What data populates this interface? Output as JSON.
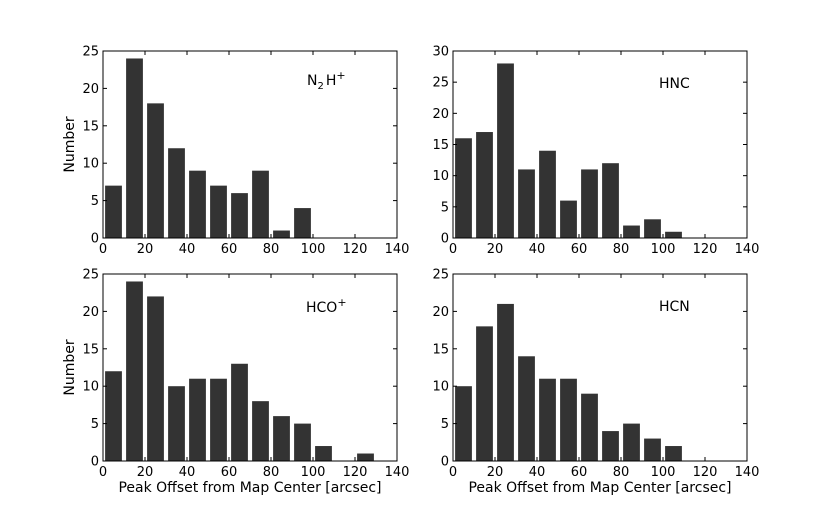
{
  "figure": {
    "xlabel": "Peak Offset from Map Center [arcsec]",
    "ylabel": "Number",
    "bar_color": "#333333"
  },
  "chart_data": [
    {
      "type": "bar",
      "title": "N2H+",
      "label_main": "N",
      "label_sub": "2",
      "label_tail": "H",
      "label_sup": "+",
      "xlabel": "",
      "ylabel": "Number",
      "bin_width": 10,
      "x": [
        5,
        15,
        25,
        35,
        45,
        55,
        65,
        75,
        85,
        95
      ],
      "values": [
        7,
        24,
        18,
        12,
        9,
        7,
        6,
        9,
        1,
        4
      ],
      "xlim": [
        0,
        140
      ],
      "ylim": [
        0,
        25
      ],
      "xticks": [
        0,
        20,
        40,
        60,
        80,
        100,
        120,
        140
      ],
      "yticks": [
        0,
        5,
        10,
        15,
        20,
        25
      ]
    },
    {
      "type": "bar",
      "title": "HNC",
      "label_main": "HNC",
      "label_sub": "",
      "label_tail": "",
      "label_sup": "",
      "xlabel": "",
      "ylabel": "",
      "bin_width": 10,
      "x": [
        5,
        15,
        25,
        35,
        45,
        55,
        65,
        75,
        85,
        95,
        105
      ],
      "values": [
        16,
        17,
        28,
        11,
        14,
        6,
        11,
        12,
        2,
        3,
        1
      ],
      "xlim": [
        0,
        140
      ],
      "ylim": [
        0,
        30
      ],
      "xticks": [
        0,
        20,
        40,
        60,
        80,
        100,
        120,
        140
      ],
      "yticks": [
        0,
        5,
        10,
        15,
        20,
        25,
        30
      ]
    },
    {
      "type": "bar",
      "title": "HCO+",
      "label_main": "HCO",
      "label_sub": "",
      "label_tail": "",
      "label_sup": "+",
      "xlabel": "Peak Offset from Map Center [arcsec]",
      "ylabel": "Number",
      "bin_width": 10,
      "x": [
        5,
        15,
        25,
        35,
        45,
        55,
        65,
        75,
        85,
        95,
        105,
        125
      ],
      "values": [
        12,
        24,
        22,
        10,
        11,
        11,
        13,
        8,
        6,
        5,
        2,
        1
      ],
      "xlim": [
        0,
        140
      ],
      "ylim": [
        0,
        25
      ],
      "xticks": [
        0,
        20,
        40,
        60,
        80,
        100,
        120,
        140
      ],
      "yticks": [
        0,
        5,
        10,
        15,
        20,
        25
      ]
    },
    {
      "type": "bar",
      "title": "HCN",
      "label_main": "HCN",
      "label_sub": "",
      "label_tail": "",
      "label_sup": "",
      "xlabel": "Peak Offset from Map Center [arcsec]",
      "ylabel": "",
      "bin_width": 10,
      "x": [
        5,
        15,
        25,
        35,
        45,
        55,
        65,
        75,
        85,
        95,
        105
      ],
      "values": [
        10,
        18,
        21,
        14,
        11,
        11,
        9,
        4,
        5,
        3,
        2
      ],
      "xlim": [
        0,
        140
      ],
      "ylim": [
        0,
        25
      ],
      "xticks": [
        0,
        20,
        40,
        60,
        80,
        100,
        120,
        140
      ],
      "yticks": [
        0,
        5,
        10,
        15,
        20,
        25
      ]
    }
  ]
}
